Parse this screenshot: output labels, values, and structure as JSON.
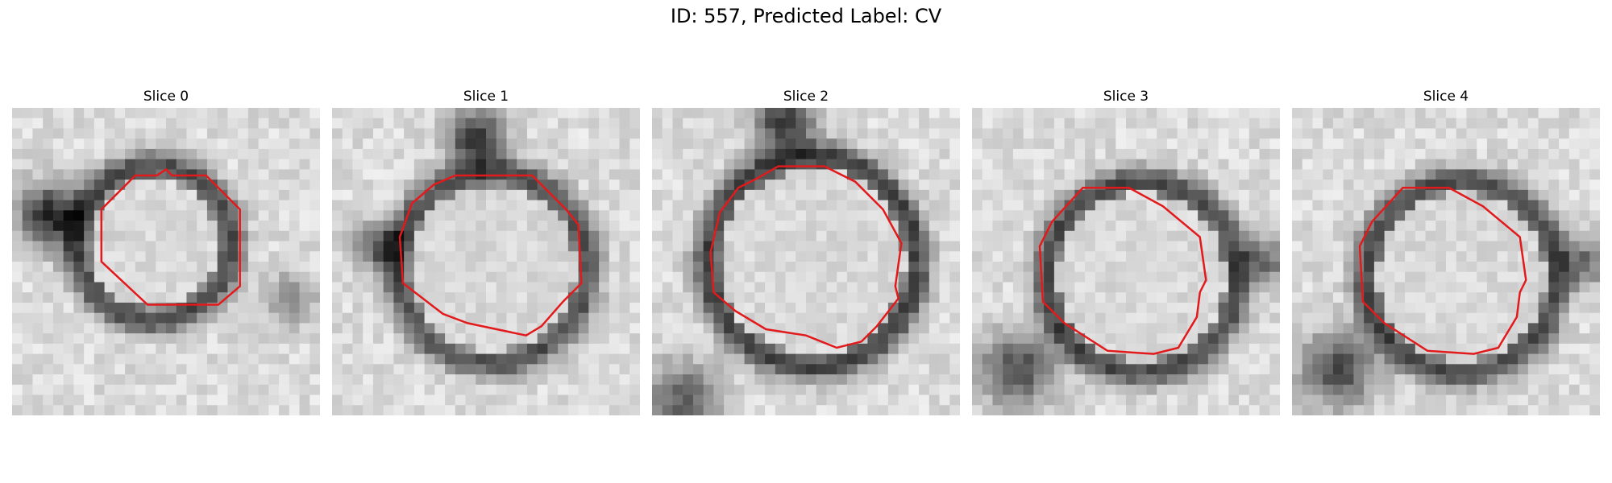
{
  "figure": {
    "suptitle": "ID: 557, Predicted Label: CV"
  },
  "panels": [
    {
      "title": "Slice 0",
      "seed": 11,
      "center": [
        0.46,
        0.44
      ],
      "radius": 0.21,
      "ring": 0.95,
      "extraDark": [
        [
          0.12,
          0.35,
          0.1,
          1.0
        ],
        [
          0.9,
          0.62,
          0.08,
          0.5
        ]
      ]
    },
    {
      "title": "Slice 1",
      "seed": 23,
      "center": [
        0.52,
        0.52
      ],
      "radius": 0.27,
      "ring": 0.9,
      "extraDark": [
        [
          0.47,
          0.1,
          0.09,
          1.0
        ],
        [
          0.15,
          0.45,
          0.08,
          0.7
        ]
      ]
    },
    {
      "title": "Slice 2",
      "seed": 37,
      "center": [
        0.52,
        0.5
      ],
      "radius": 0.3,
      "ring": 1.0,
      "extraDark": [
        [
          0.43,
          0.05,
          0.1,
          0.9
        ],
        [
          0.1,
          0.95,
          0.12,
          0.7
        ]
      ]
    },
    {
      "title": "Slice 3",
      "seed": 51,
      "center": [
        0.55,
        0.55
      ],
      "radius": 0.27,
      "ring": 0.95,
      "extraDark": [
        [
          0.15,
          0.85,
          0.12,
          0.8
        ],
        [
          0.95,
          0.5,
          0.08,
          0.6
        ]
      ]
    },
    {
      "title": "Slice 4",
      "seed": 67,
      "center": [
        0.55,
        0.55
      ],
      "radius": 0.27,
      "ring": 0.95,
      "extraDark": [
        [
          0.15,
          0.85,
          0.12,
          0.8
        ],
        [
          0.95,
          0.5,
          0.08,
          0.6
        ]
      ]
    }
  ],
  "contours": [
    [
      [
        0.5,
        0.2
      ],
      [
        0.52,
        0.22
      ],
      [
        0.63,
        0.22
      ],
      [
        0.74,
        0.33
      ],
      [
        0.74,
        0.58
      ],
      [
        0.67,
        0.64
      ],
      [
        0.44,
        0.64
      ],
      [
        0.29,
        0.5
      ],
      [
        0.29,
        0.33
      ],
      [
        0.4,
        0.22
      ],
      [
        0.47,
        0.22
      ]
    ],
    [
      [
        0.4,
        0.22
      ],
      [
        0.65,
        0.22
      ],
      [
        0.76,
        0.33
      ],
      [
        0.8,
        0.38
      ],
      [
        0.81,
        0.57
      ],
      [
        0.75,
        0.63
      ],
      [
        0.68,
        0.71
      ],
      [
        0.63,
        0.74
      ],
      [
        0.44,
        0.7
      ],
      [
        0.36,
        0.67
      ],
      [
        0.23,
        0.57
      ],
      [
        0.22,
        0.42
      ],
      [
        0.26,
        0.31
      ],
      [
        0.33,
        0.25
      ]
    ],
    [
      [
        0.41,
        0.19
      ],
      [
        0.56,
        0.19
      ],
      [
        0.66,
        0.24
      ],
      [
        0.75,
        0.33
      ],
      [
        0.81,
        0.44
      ],
      [
        0.79,
        0.58
      ],
      [
        0.8,
        0.62
      ],
      [
        0.73,
        0.71
      ],
      [
        0.68,
        0.76
      ],
      [
        0.6,
        0.78
      ],
      [
        0.5,
        0.74
      ],
      [
        0.37,
        0.72
      ],
      [
        0.27,
        0.66
      ],
      [
        0.2,
        0.6
      ],
      [
        0.19,
        0.47
      ],
      [
        0.22,
        0.34
      ],
      [
        0.28,
        0.26
      ],
      [
        0.34,
        0.23
      ]
    ],
    [
      [
        0.36,
        0.26
      ],
      [
        0.51,
        0.26
      ],
      [
        0.62,
        0.32
      ],
      [
        0.74,
        0.42
      ],
      [
        0.76,
        0.56
      ],
      [
        0.74,
        0.6
      ],
      [
        0.73,
        0.68
      ],
      [
        0.67,
        0.78
      ],
      [
        0.59,
        0.8
      ],
      [
        0.44,
        0.79
      ],
      [
        0.3,
        0.7
      ],
      [
        0.23,
        0.63
      ],
      [
        0.22,
        0.45
      ],
      [
        0.26,
        0.37
      ]
    ],
    [
      [
        0.36,
        0.26
      ],
      [
        0.51,
        0.26
      ],
      [
        0.62,
        0.32
      ],
      [
        0.74,
        0.42
      ],
      [
        0.76,
        0.56
      ],
      [
        0.74,
        0.6
      ],
      [
        0.73,
        0.68
      ],
      [
        0.67,
        0.78
      ],
      [
        0.59,
        0.8
      ],
      [
        0.44,
        0.79
      ],
      [
        0.3,
        0.7
      ],
      [
        0.23,
        0.63
      ],
      [
        0.22,
        0.45
      ],
      [
        0.26,
        0.37
      ]
    ]
  ],
  "colors": {
    "contour": "#e31a1c"
  }
}
